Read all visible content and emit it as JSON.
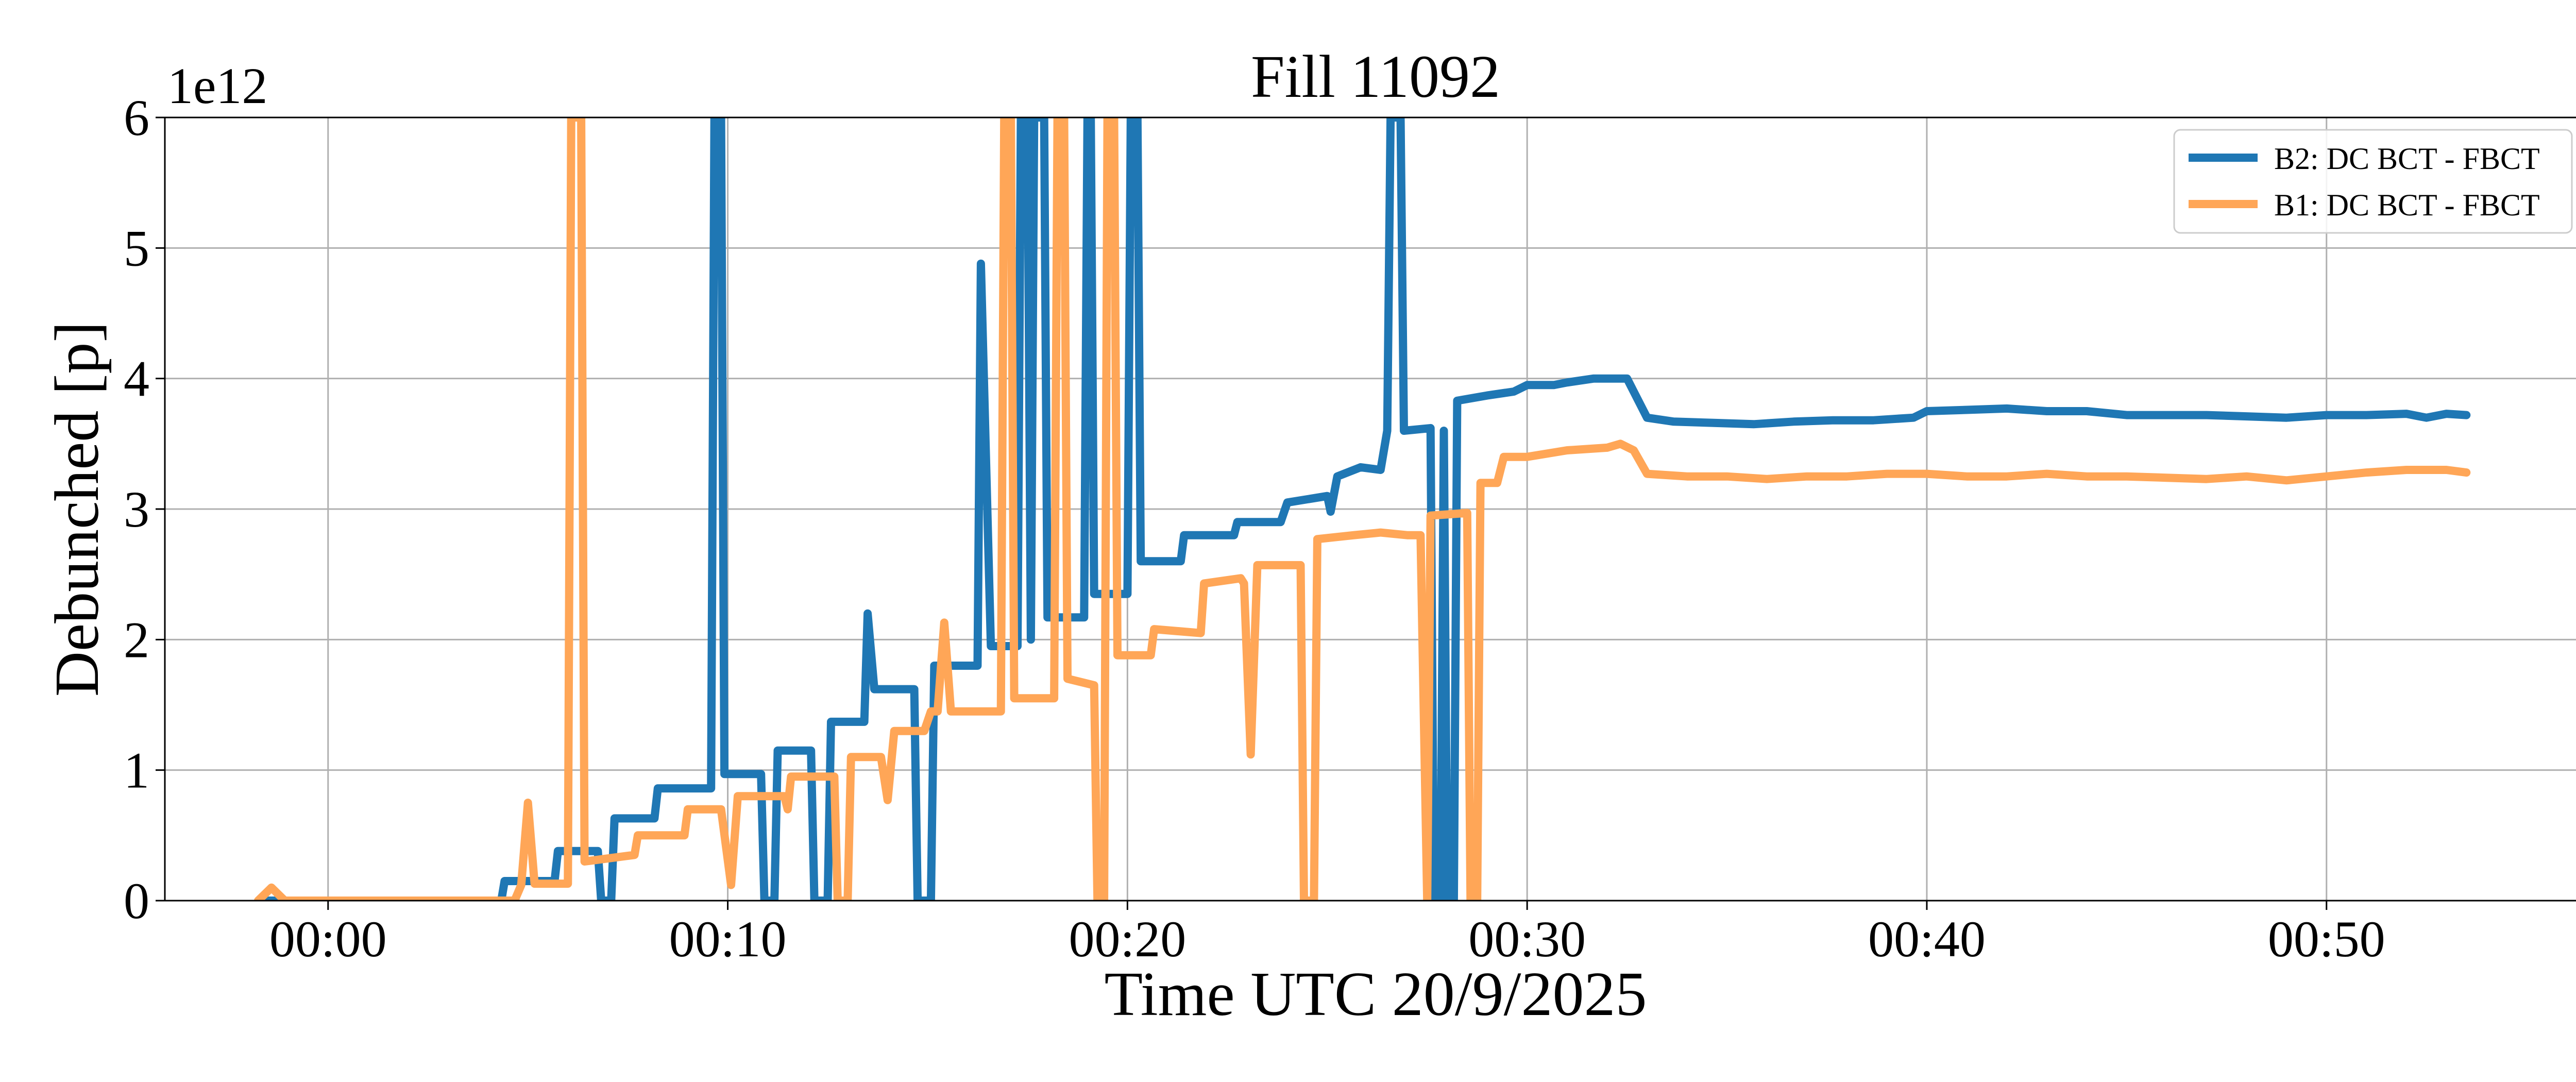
{
  "chart_data": {
    "type": "line",
    "title": "Fill 11092",
    "xlabel": "Time UTC 20/9/2025",
    "ylabel": "Debunched [p]",
    "y_offset_text": "1e12",
    "xlim": [
      "23:55:55",
      "00:56:30"
    ],
    "ylim": [
      0,
      6
    ],
    "grid": true,
    "legend_position": "top-right",
    "x_ticks": [
      "00:00",
      "00:10",
      "00:20",
      "00:30",
      "00:40",
      "00:50"
    ],
    "y_ticks": [
      "0",
      "1",
      "2",
      "3",
      "4",
      "5",
      "6"
    ],
    "series": [
      {
        "name": "B2: DC BCT - FBCT",
        "color": "#1f77b4",
        "points": [
          [
            "23:58:30",
            0
          ],
          [
            "00:00:00",
            0
          ],
          [
            "00:04:20",
            0
          ],
          [
            "00:04:25",
            0.15
          ],
          [
            "00:05:40",
            0.15
          ],
          [
            "00:05:45",
            0.38
          ],
          [
            "00:06:45",
            0.38
          ],
          [
            "00:06:50",
            0
          ],
          [
            "00:07:05",
            0
          ],
          [
            "00:07:10",
            0.63
          ],
          [
            "00:08:10",
            0.63
          ],
          [
            "00:08:15",
            0.86
          ],
          [
            "00:09:35",
            0.86
          ],
          [
            "00:09:40",
            6
          ],
          [
            "00:09:50",
            6
          ],
          [
            "00:09:55",
            0.97
          ],
          [
            "00:10:50",
            0.97
          ],
          [
            "00:10:55",
            0
          ],
          [
            "00:11:10",
            0
          ],
          [
            "00:11:15",
            1.15
          ],
          [
            "00:12:05",
            1.15
          ],
          [
            "00:12:10",
            0
          ],
          [
            "00:12:30",
            0
          ],
          [
            "00:12:35",
            1.37
          ],
          [
            "00:13:25",
            1.37
          ],
          [
            "00:13:30",
            2.2
          ],
          [
            "00:13:40",
            1.62
          ],
          [
            "00:14:40",
            1.62
          ],
          [
            "00:14:45",
            0
          ],
          [
            "00:15:05",
            0
          ],
          [
            "00:15:10",
            1.8
          ],
          [
            "00:16:15",
            1.8
          ],
          [
            "00:16:20",
            4.88
          ],
          [
            "00:16:35",
            1.95
          ],
          [
            "00:17:15",
            1.95
          ],
          [
            "00:17:20",
            6
          ],
          [
            "00:17:30",
            6
          ],
          [
            "00:17:35",
            2.0
          ],
          [
            "00:17:40",
            6
          ],
          [
            "00:17:55",
            6
          ],
          [
            "00:18:00",
            2.17
          ],
          [
            "00:18:55",
            2.17
          ],
          [
            "00:19:00",
            6
          ],
          [
            "00:19:05",
            6
          ],
          [
            "00:19:10",
            2.35
          ],
          [
            "00:20:00",
            2.35
          ],
          [
            "00:20:05",
            6
          ],
          [
            "00:20:15",
            6
          ],
          [
            "00:20:20",
            2.6
          ],
          [
            "00:21:20",
            2.6
          ],
          [
            "00:21:25",
            2.8
          ],
          [
            "00:22:40",
            2.8
          ],
          [
            "00:22:45",
            2.9
          ],
          [
            "00:23:50",
            2.9
          ],
          [
            "00:24:00",
            3.05
          ],
          [
            "00:25:00",
            3.1
          ],
          [
            "00:25:05",
            2.98
          ],
          [
            "00:25:15",
            3.25
          ],
          [
            "00:25:50",
            3.32
          ],
          [
            "00:26:20",
            3.3
          ],
          [
            "00:26:30",
            3.6
          ],
          [
            "00:26:35",
            6
          ],
          [
            "00:26:50",
            6
          ],
          [
            "00:26:55",
            3.6
          ],
          [
            "00:27:35",
            3.62
          ],
          [
            "00:27:40",
            0
          ],
          [
            "00:27:50",
            0
          ],
          [
            "00:27:55",
            3.6
          ],
          [
            "00:28:00",
            0
          ],
          [
            "00:28:10",
            0
          ],
          [
            "00:28:15",
            3.83
          ],
          [
            "00:29:00",
            3.87
          ],
          [
            "00:29:40",
            3.9
          ],
          [
            "00:30:00",
            3.95
          ],
          [
            "00:30:40",
            3.95
          ],
          [
            "00:31:00",
            3.97
          ],
          [
            "00:31:40",
            4.0
          ],
          [
            "00:32:30",
            4.0
          ],
          [
            "00:33:00",
            3.7
          ],
          [
            "00:33:40",
            3.67
          ],
          [
            "00:34:40",
            3.66
          ],
          [
            "00:35:40",
            3.65
          ],
          [
            "00:36:40",
            3.67
          ],
          [
            "00:37:40",
            3.68
          ],
          [
            "00:38:40",
            3.68
          ],
          [
            "00:39:40",
            3.7
          ],
          [
            "00:40:00",
            3.75
          ],
          [
            "00:41:00",
            3.76
          ],
          [
            "00:42:00",
            3.77
          ],
          [
            "00:43:00",
            3.75
          ],
          [
            "00:44:00",
            3.75
          ],
          [
            "00:45:00",
            3.72
          ],
          [
            "00:46:00",
            3.72
          ],
          [
            "00:47:00",
            3.72
          ],
          [
            "00:48:00",
            3.71
          ],
          [
            "00:49:00",
            3.7
          ],
          [
            "00:50:00",
            3.72
          ],
          [
            "00:51:00",
            3.72
          ],
          [
            "00:52:00",
            3.73
          ],
          [
            "00:52:30",
            3.7
          ],
          [
            "00:53:00",
            3.73
          ],
          [
            "00:53:30",
            3.72
          ]
        ]
      },
      {
        "name": "B1: DC BCT - FBCT",
        "color": "#ffa657",
        "points": [
          [
            "23:58:15",
            0
          ],
          [
            "23:58:35",
            0.1
          ],
          [
            "23:58:55",
            0
          ],
          [
            "00:04:40",
            0
          ],
          [
            "00:04:50",
            0.12
          ],
          [
            "00:05:00",
            0.75
          ],
          [
            "00:05:10",
            0.13
          ],
          [
            "00:06:00",
            0.13
          ],
          [
            "00:06:05",
            6
          ],
          [
            "00:06:20",
            6
          ],
          [
            "00:06:25",
            0.3
          ],
          [
            "00:07:40",
            0.35
          ],
          [
            "00:07:45",
            0.5
          ],
          [
            "00:08:55",
            0.5
          ],
          [
            "00:09:00",
            0.7
          ],
          [
            "00:09:50",
            0.7
          ],
          [
            "00:10:05",
            0.12
          ],
          [
            "00:10:15",
            0.8
          ],
          [
            "00:11:25",
            0.8
          ],
          [
            "00:11:30",
            0.7
          ],
          [
            "00:11:35",
            0.95
          ],
          [
            "00:12:40",
            0.95
          ],
          [
            "00:12:45",
            0
          ],
          [
            "00:13:00",
            0
          ],
          [
            "00:13:05",
            1.1
          ],
          [
            "00:13:50",
            1.1
          ],
          [
            "00:14:00",
            0.77
          ],
          [
            "00:14:10",
            1.3
          ],
          [
            "00:14:55",
            1.3
          ],
          [
            "00:15:05",
            1.45
          ],
          [
            "00:15:15",
            1.45
          ],
          [
            "00:15:25",
            2.13
          ],
          [
            "00:15:35",
            1.45
          ],
          [
            "00:16:50",
            1.45
          ],
          [
            "00:16:55",
            6
          ],
          [
            "00:17:05",
            6
          ],
          [
            "00:17:10",
            1.55
          ],
          [
            "00:18:10",
            1.55
          ],
          [
            "00:18:15",
            6
          ],
          [
            "00:18:25",
            6
          ],
          [
            "00:18:30",
            1.7
          ],
          [
            "00:19:10",
            1.65
          ],
          [
            "00:19:15",
            0
          ],
          [
            "00:19:25",
            0
          ],
          [
            "00:19:30",
            6
          ],
          [
            "00:19:40",
            6
          ],
          [
            "00:19:45",
            1.88
          ],
          [
            "00:20:35",
            1.88
          ],
          [
            "00:20:40",
            2.08
          ],
          [
            "00:21:50",
            2.05
          ],
          [
            "00:21:55",
            2.43
          ],
          [
            "00:22:50",
            2.47
          ],
          [
            "00:22:55",
            2.43
          ],
          [
            "00:23:05",
            1.12
          ],
          [
            "00:23:15",
            2.57
          ],
          [
            "00:24:20",
            2.57
          ],
          [
            "00:24:25",
            0
          ],
          [
            "00:24:40",
            0
          ],
          [
            "00:24:45",
            2.77
          ],
          [
            "00:25:40",
            2.8
          ],
          [
            "00:26:20",
            2.82
          ],
          [
            "00:27:00",
            2.8
          ],
          [
            "00:27:20",
            2.8
          ],
          [
            "00:27:30",
            0
          ],
          [
            "00:27:35",
            2.95
          ],
          [
            "00:28:30",
            2.97
          ],
          [
            "00:28:35",
            0
          ],
          [
            "00:28:45",
            0
          ],
          [
            "00:28:50",
            3.2
          ],
          [
            "00:29:15",
            3.2
          ],
          [
            "00:29:25",
            3.4
          ],
          [
            "00:30:00",
            3.4
          ],
          [
            "00:31:00",
            3.45
          ],
          [
            "00:32:00",
            3.47
          ],
          [
            "00:32:20",
            3.5
          ],
          [
            "00:32:40",
            3.45
          ],
          [
            "00:33:00",
            3.27
          ],
          [
            "00:34:00",
            3.25
          ],
          [
            "00:35:00",
            3.25
          ],
          [
            "00:36:00",
            3.23
          ],
          [
            "00:37:00",
            3.25
          ],
          [
            "00:38:00",
            3.25
          ],
          [
            "00:39:00",
            3.27
          ],
          [
            "00:40:00",
            3.27
          ],
          [
            "00:41:00",
            3.25
          ],
          [
            "00:42:00",
            3.25
          ],
          [
            "00:43:00",
            3.27
          ],
          [
            "00:44:00",
            3.25
          ],
          [
            "00:45:00",
            3.25
          ],
          [
            "00:46:00",
            3.24
          ],
          [
            "00:47:00",
            3.23
          ],
          [
            "00:48:00",
            3.25
          ],
          [
            "00:49:00",
            3.22
          ],
          [
            "00:50:00",
            3.25
          ],
          [
            "00:51:00",
            3.28
          ],
          [
            "00:52:00",
            3.3
          ],
          [
            "00:53:00",
            3.3
          ],
          [
            "00:53:30",
            3.28
          ]
        ]
      }
    ]
  }
}
